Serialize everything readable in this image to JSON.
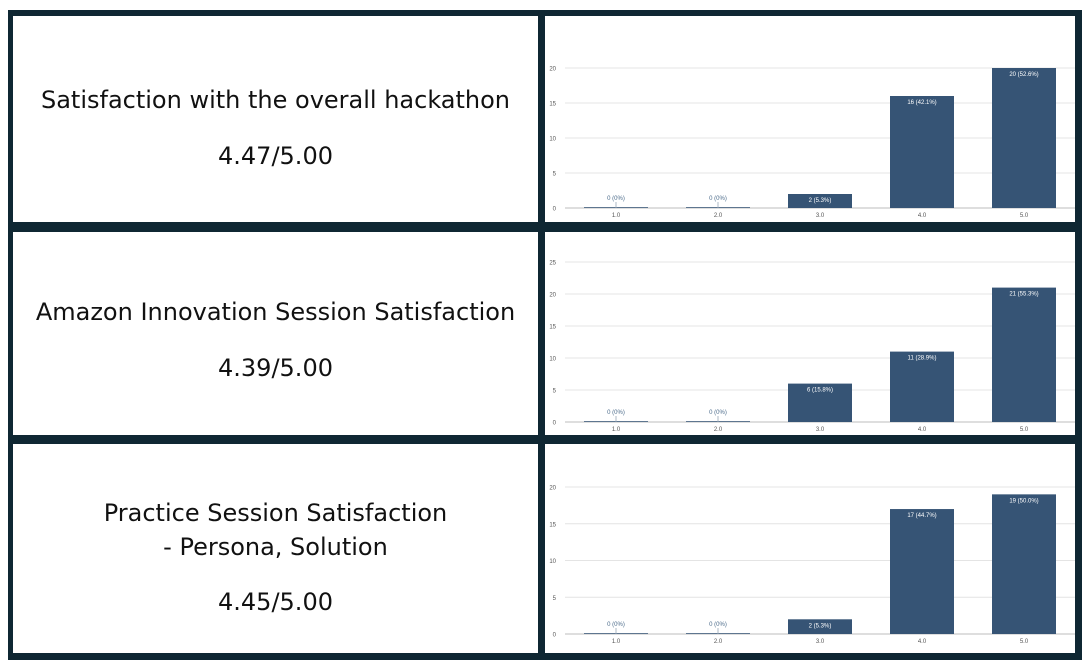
{
  "rows": [
    {
      "title_lines": [
        "Satisfaction with the overall hackathon"
      ],
      "score": "4.47/5.00"
    },
    {
      "title_lines": [
        "Amazon Innovation Session Satisfaction"
      ],
      "score": "4.39/5.00"
    },
    {
      "title_lines": [
        "Practice Session Satisfaction",
        "- Persona, Solution"
      ],
      "score": "4.45/5.00"
    }
  ],
  "colors": {
    "bar": "#365475",
    "border": "#0f2733",
    "grid": "#e4e4e4",
    "tick_text": "#555555",
    "zero_label": "#4a6a8a"
  },
  "chart_data": [
    {
      "type": "bar",
      "categories": [
        "1.0",
        "2.0",
        "3.0",
        "4.0",
        "5.0"
      ],
      "values": [
        0,
        0,
        2,
        16,
        20
      ],
      "labels": [
        "0 (0%)",
        "0 (0%)",
        "2 (5.3%)",
        "16 (42.1%)",
        "20 (52.6%)"
      ],
      "ylim": [
        0,
        20
      ],
      "yticks": [
        0,
        5,
        10,
        15,
        20
      ],
      "grid": true
    },
    {
      "type": "bar",
      "categories": [
        "1.0",
        "2.0",
        "3.0",
        "4.0",
        "5.0"
      ],
      "values": [
        0,
        0,
        6,
        11,
        21
      ],
      "labels": [
        "0 (0%)",
        "0 (0%)",
        "6 (15.8%)",
        "11 (28.9%)",
        "21 (55.3%)"
      ],
      "ylim": [
        0,
        25
      ],
      "yticks": [
        0,
        5,
        10,
        15,
        20,
        25
      ],
      "grid": true
    },
    {
      "type": "bar",
      "categories": [
        "1.0",
        "2.0",
        "3.0",
        "4.0",
        "5.0"
      ],
      "values": [
        0,
        0,
        2,
        17,
        19
      ],
      "labels": [
        "0 (0%)",
        "0 (0%)",
        "2 (5.3%)",
        "17 (44.7%)",
        "19 (50.0%)"
      ],
      "ylim": [
        0,
        20
      ],
      "yticks": [
        0,
        5,
        10,
        15,
        20
      ],
      "grid": true
    }
  ]
}
